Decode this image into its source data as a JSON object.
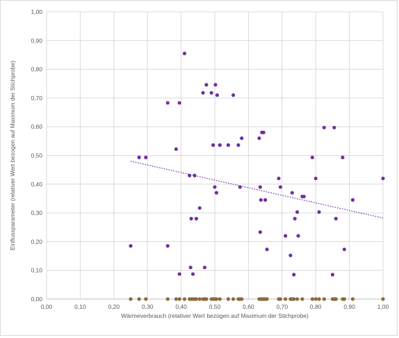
{
  "chart_data": {
    "type": "scatter",
    "xlabel": "Wärmeverbrauch (relativer Wert bezogen auf Maximum der Stichprobe)",
    "ylabel": "Einflussparameter (relativer Wert bezogen auf Maximum der Stichprobe)",
    "xlim": [
      0,
      1
    ],
    "ylim": [
      0,
      1
    ],
    "x_ticks": [
      "0,00",
      "0,10",
      "0,20",
      "0,30",
      "0,40",
      "0,50",
      "0,60",
      "0,70",
      "0,80",
      "0,90",
      "1,00"
    ],
    "y_ticks": [
      "0,00",
      "0,10",
      "0,20",
      "0,30",
      "0,40",
      "0,50",
      "0,60",
      "0,70",
      "0,80",
      "0,90",
      "1,00"
    ],
    "grid": true,
    "legend": "none",
    "series": [
      {
        "color": "#7030a0",
        "marker": "circle",
        "points": [
          [
            0.25,
            0.185
          ],
          [
            0.275,
            0.493
          ],
          [
            0.295,
            0.493
          ],
          [
            0.36,
            0.683
          ],
          [
            0.36,
            0.185
          ],
          [
            0.385,
            0.522
          ],
          [
            0.395,
            0.683
          ],
          [
            0.41,
            0.855
          ],
          [
            0.395,
            0.087
          ],
          [
            0.425,
            0.43
          ],
          [
            0.428,
            0.11
          ],
          [
            0.43,
            0.28
          ],
          [
            0.435,
            0.087
          ],
          [
            0.44,
            0.43
          ],
          [
            0.445,
            0.28
          ],
          [
            0.455,
            0.317
          ],
          [
            0.465,
            0.718
          ],
          [
            0.47,
            0.11
          ],
          [
            0.475,
            0.746
          ],
          [
            0.49,
            0.718
          ],
          [
            0.495,
            0.536
          ],
          [
            0.5,
            0.39
          ],
          [
            0.502,
            0.746
          ],
          [
            0.505,
            0.37
          ],
          [
            0.507,
            0.71
          ],
          [
            0.515,
            0.536
          ],
          [
            0.54,
            0.536
          ],
          [
            0.555,
            0.71
          ],
          [
            0.57,
            0.536
          ],
          [
            0.575,
            0.39
          ],
          [
            0.58,
            0.56
          ],
          [
            0.632,
            0.56
          ],
          [
            0.635,
            0.233
          ],
          [
            0.635,
            0.39
          ],
          [
            0.637,
            0.345
          ],
          [
            0.64,
            0.58
          ],
          [
            0.645,
            0.58
          ],
          [
            0.65,
            0.345
          ],
          [
            0.655,
            0.173
          ],
          [
            0.69,
            0.42
          ],
          [
            0.695,
            0.39
          ],
          [
            0.71,
            0.22
          ],
          [
            0.725,
            0.152
          ],
          [
            0.73,
            0.37
          ],
          [
            0.735,
            0.085
          ],
          [
            0.738,
            0.28
          ],
          [
            0.745,
            0.303
          ],
          [
            0.748,
            0.22
          ],
          [
            0.76,
            0.357
          ],
          [
            0.765,
            0.357
          ],
          [
            0.79,
            0.493
          ],
          [
            0.8,
            0.42
          ],
          [
            0.81,
            0.303
          ],
          [
            0.825,
            0.597
          ],
          [
            0.85,
            0.085
          ],
          [
            0.855,
            0.597
          ],
          [
            0.86,
            0.28
          ],
          [
            0.88,
            0.493
          ],
          [
            0.885,
            0.173
          ],
          [
            0.91,
            0.345
          ],
          [
            1.0,
            0.42
          ]
        ]
      },
      {
        "color": "#8b6a3d",
        "marker": "circle",
        "points": [
          [
            0.25,
            0
          ],
          [
            0.275,
            0
          ],
          [
            0.295,
            0
          ],
          [
            0.36,
            0
          ],
          [
            0.385,
            0
          ],
          [
            0.395,
            0
          ],
          [
            0.41,
            0
          ],
          [
            0.425,
            0
          ],
          [
            0.43,
            0
          ],
          [
            0.435,
            0
          ],
          [
            0.44,
            0
          ],
          [
            0.445,
            0
          ],
          [
            0.455,
            0
          ],
          [
            0.465,
            0
          ],
          [
            0.47,
            0
          ],
          [
            0.475,
            0
          ],
          [
            0.49,
            0
          ],
          [
            0.495,
            0
          ],
          [
            0.5,
            0
          ],
          [
            0.505,
            0
          ],
          [
            0.515,
            0
          ],
          [
            0.54,
            0
          ],
          [
            0.555,
            0
          ],
          [
            0.57,
            0
          ],
          [
            0.575,
            0
          ],
          [
            0.58,
            0
          ],
          [
            0.632,
            0
          ],
          [
            0.637,
            0
          ],
          [
            0.64,
            0
          ],
          [
            0.645,
            0
          ],
          [
            0.65,
            0
          ],
          [
            0.655,
            0
          ],
          [
            0.69,
            0
          ],
          [
            0.695,
            0
          ],
          [
            0.71,
            0
          ],
          [
            0.725,
            0
          ],
          [
            0.73,
            0
          ],
          [
            0.735,
            0
          ],
          [
            0.745,
            0
          ],
          [
            0.76,
            0
          ],
          [
            0.79,
            0
          ],
          [
            0.8,
            0
          ],
          [
            0.81,
            0
          ],
          [
            0.825,
            0
          ],
          [
            0.85,
            0
          ],
          [
            0.855,
            0
          ],
          [
            0.86,
            0
          ],
          [
            0.88,
            0
          ],
          [
            0.885,
            0
          ],
          [
            0.91,
            0
          ],
          [
            1.0,
            0
          ]
        ]
      }
    ],
    "trendline": {
      "type": "linear",
      "style": "dotted",
      "color": "#7030a0",
      "from": [
        0.25,
        0.48
      ],
      "to": [
        1.0,
        0.282
      ]
    }
  }
}
